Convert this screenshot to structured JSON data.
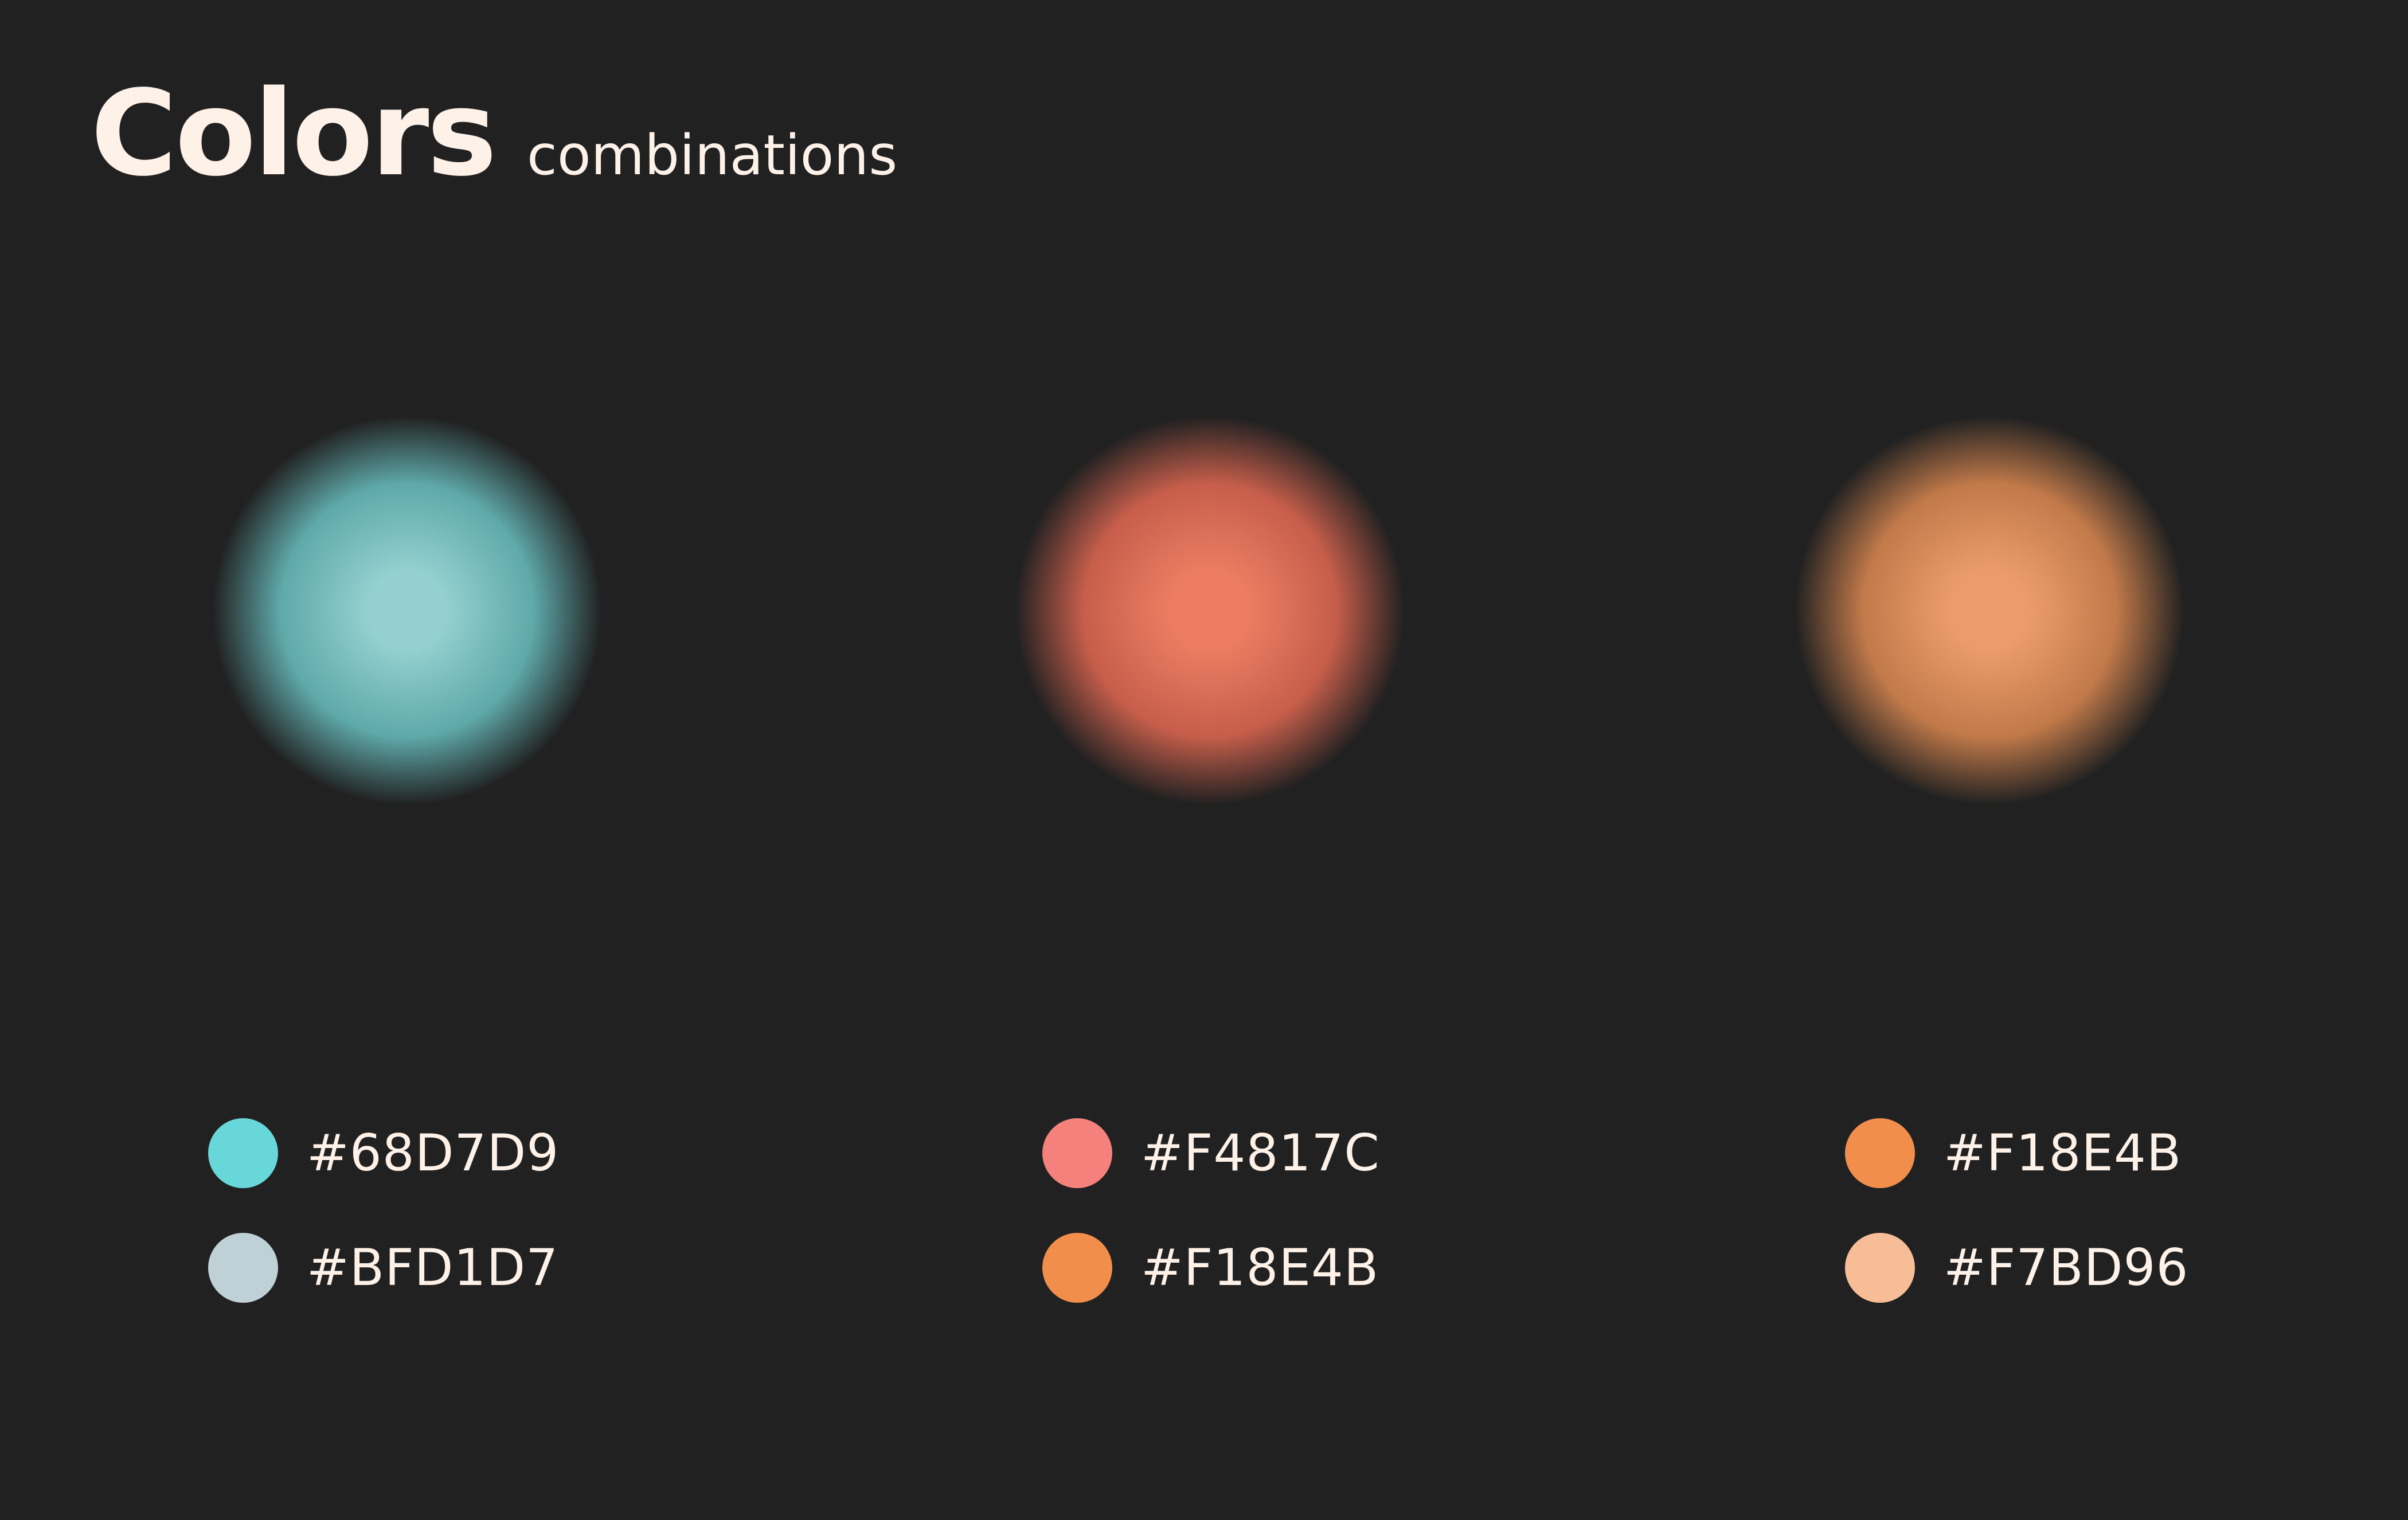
{
  "title": {
    "main": "Colors",
    "sub": "combinations"
  },
  "background_color": "#212121",
  "blobs": [
    {
      "name": "teal-blob",
      "inner": "#94D0D0",
      "mid": "#5FA9AA",
      "outer": "#212121"
    },
    {
      "name": "coral-blob",
      "inner": "#EC7D62",
      "mid": "#C65E4B",
      "outer": "#212121"
    },
    {
      "name": "amber-blob",
      "inner": "#EC9C6C",
      "mid": "#C27A4A",
      "outer": "#212121"
    }
  ],
  "palettes": [
    {
      "swatches": [
        {
          "hex": "#68D7D9",
          "label": "#68D7D9"
        },
        {
          "hex": "#BFD1D7",
          "label": "#BFD1D7"
        }
      ]
    },
    {
      "swatches": [
        {
          "hex": "#F4817C",
          "label": "#F4817C"
        },
        {
          "hex": "#F18E4B",
          "label": "#F18E4B"
        }
      ]
    },
    {
      "swatches": [
        {
          "hex": "#F18E4B",
          "label": "#F18E4B"
        },
        {
          "hex": "#F7BD96",
          "label": "#F7BD96"
        }
      ]
    }
  ]
}
